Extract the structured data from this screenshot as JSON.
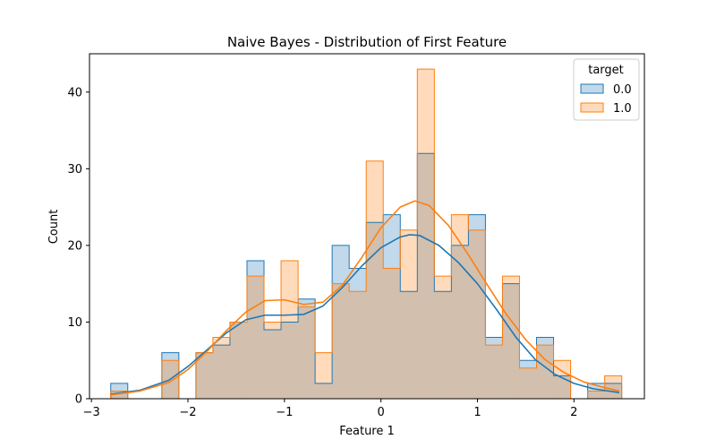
{
  "chart_data": {
    "type": "histogram",
    "title": "Naive Bayes - Distribution of First Feature",
    "xlabel": "Feature 1",
    "ylabel": "Count",
    "xlim": [
      -3.02,
      2.73
    ],
    "ylim": [
      0,
      45
    ],
    "xticks": [
      -3,
      -2,
      -1,
      0,
      1,
      2
    ],
    "xtick_labels": [
      "−3",
      "−2",
      "−1",
      "0",
      "1",
      "2"
    ],
    "yticks": [
      0,
      10,
      20,
      30,
      40
    ],
    "ytick_labels": [
      "0",
      "10",
      "20",
      "30",
      "40"
    ],
    "bin_start": -2.8,
    "bin_width": 0.1765,
    "grid": false,
    "legend": {
      "title": "target",
      "placement": "top-right"
    },
    "series": [
      {
        "name": "0.0",
        "color": "#1f77b4",
        "fill": "#aec7e8",
        "counts": [
          2,
          0,
          0,
          6,
          0,
          6,
          7,
          10,
          18,
          9,
          10,
          13,
          2,
          20,
          17,
          23,
          24,
          14,
          32,
          14,
          20,
          24,
          8,
          15,
          5,
          8,
          3,
          0,
          2,
          2
        ],
        "kde_x": [
          -2.8,
          -2.5,
          -2.2,
          -2.0,
          -1.8,
          -1.6,
          -1.4,
          -1.2,
          -1.0,
          -0.8,
          -0.6,
          -0.4,
          -0.2,
          0.0,
          0.2,
          0.3,
          0.4,
          0.6,
          0.8,
          1.0,
          1.2,
          1.4,
          1.6,
          1.8,
          2.0,
          2.2,
          2.47
        ],
        "kde_y": [
          0.6,
          1.1,
          2.4,
          4.2,
          6.4,
          8.6,
          10.3,
          10.9,
          10.9,
          11.0,
          12.1,
          14.5,
          17.3,
          19.7,
          21.1,
          21.4,
          21.3,
          20.0,
          17.8,
          15.0,
          11.6,
          8.0,
          5.1,
          3.2,
          2.0,
          1.3,
          0.8
        ]
      },
      {
        "name": "1.0",
        "color": "#ff7f0e",
        "fill": "#ffbb78",
        "counts": [
          1,
          0,
          0,
          5,
          0,
          6,
          8,
          10,
          16,
          10,
          18,
          12,
          6,
          15,
          14,
          31,
          17,
          22,
          43,
          16,
          24,
          22,
          7,
          16,
          4,
          7,
          5,
          0,
          1,
          3
        ],
        "kde_x": [
          -2.8,
          -2.5,
          -2.2,
          -2.0,
          -1.8,
          -1.6,
          -1.4,
          -1.2,
          -1.0,
          -0.8,
          -0.6,
          -0.4,
          -0.2,
          0.0,
          0.2,
          0.35,
          0.5,
          0.7,
          0.9,
          1.1,
          1.3,
          1.5,
          1.7,
          1.9,
          2.1,
          2.3,
          2.47
        ],
        "kde_y": [
          0.5,
          1.0,
          2.1,
          3.8,
          6.2,
          8.9,
          11.3,
          12.8,
          12.9,
          12.3,
          12.6,
          14.8,
          18.4,
          22.3,
          25.0,
          25.8,
          25.2,
          22.6,
          18.9,
          14.9,
          11.0,
          7.7,
          5.1,
          3.4,
          2.2,
          1.5,
          1.0
        ]
      }
    ]
  }
}
